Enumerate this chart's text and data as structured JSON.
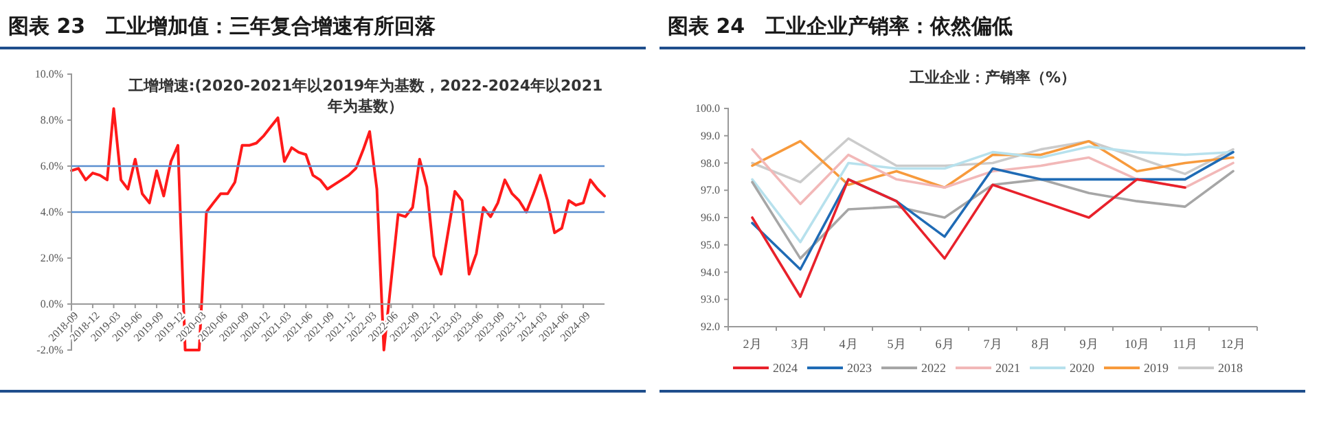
{
  "chart_data": [
    {
      "type": "line",
      "title": "图表 23　工业增加值：三年复合增速有所回落",
      "subtitle": "工增增速:(2020-2021年以2019年为基数，2022-2024年以2021年为基数）",
      "x": [
        "2018-09",
        "2018-10",
        "2018-11",
        "2018-12",
        "2019-01",
        "2019-02",
        "2019-03",
        "2019-04",
        "2019-05",
        "2019-06",
        "2019-07",
        "2019-08",
        "2019-09",
        "2019-10",
        "2019-11",
        "2019-12",
        "2020-01",
        "2020-03",
        "2020-04",
        "2020-05",
        "2020-06",
        "2020-07",
        "2020-08",
        "2020-09",
        "2020-10",
        "2020-11",
        "2020-12",
        "2021-01",
        "2021-02",
        "2021-03",
        "2021-04",
        "2021-05",
        "2021-06",
        "2021-07",
        "2021-08",
        "2021-09",
        "2021-10",
        "2021-11",
        "2021-12",
        "2022-01",
        "2022-02",
        "2022-03",
        "2022-04",
        "2022-05",
        "2022-07",
        "2022-08",
        "2022-09",
        "2022-10",
        "2022-11",
        "2022-12",
        "2023-01",
        "2023-03",
        "2023-04",
        "2023-05",
        "2023-06",
        "2023-07",
        "2023-08",
        "2023-09",
        "2023-10",
        "2023-11",
        "2023-12",
        "2024-01",
        "2024-02",
        "2024-03",
        "2024-04",
        "2024-05",
        "2024-06",
        "2024-07",
        "2024-08",
        "2024-09",
        "2024-10",
        "2024-11",
        "2024-12"
      ],
      "series": [
        {
          "color": "#ff1a1a",
          "values": [
            5.8,
            5.9,
            5.4,
            5.7,
            5.6,
            5.4,
            8.5,
            5.4,
            5.0,
            6.3,
            4.8,
            4.4,
            5.8,
            4.7,
            6.2,
            6.9,
            -2.0,
            -2.0,
            4.0,
            4.4,
            4.8,
            4.8,
            5.3,
            6.9,
            6.9,
            7.0,
            7.3,
            7.7,
            8.1,
            6.2,
            6.8,
            6.6,
            6.5,
            5.6,
            5.4,
            5.0,
            5.2,
            5.4,
            5.6,
            5.9,
            6.7,
            7.5,
            5.0,
            -2.0,
            3.9,
            3.8,
            4.2,
            6.3,
            5.1,
            2.1,
            1.3,
            4.9,
            4.5,
            1.3,
            2.2,
            4.2,
            3.8,
            4.4,
            5.4,
            4.8,
            4.5,
            4.0,
            4.8,
            5.6,
            4.5,
            3.1,
            3.3,
            4.5,
            4.3,
            4.4,
            5.4,
            5.0,
            4.7
          ]
        }
      ],
      "xlim": [
        "2018-09",
        "2024-12"
      ],
      "xticks": [
        "2018-09",
        "2018-12",
        "2019-03",
        "2019-06",
        "2019-09",
        "2019-12",
        "2020-03",
        "2020-06",
        "2020-09",
        "2020-12",
        "2021-03",
        "2021-06",
        "2021-09",
        "2021-12",
        "2022-03",
        "2022-06",
        "2022-09",
        "2022-12",
        "2023-03",
        "2023-06",
        "2023-09",
        "2023-12",
        "2024-03",
        "2024-06",
        "2024-09"
      ],
      "ylim": [
        -2,
        10
      ],
      "yticks": [
        {
          "value": -2,
          "label": "-2.0%"
        },
        {
          "value": 0,
          "label": "0.0%"
        },
        {
          "value": 2,
          "label": "2.0%"
        },
        {
          "value": 4,
          "label": "4.0%"
        },
        {
          "value": 6,
          "label": "6.0%"
        },
        {
          "value": 8,
          "label": "8.0%"
        },
        {
          "value": 10,
          "label": "10.0%"
        }
      ],
      "ref_lines": [
        {
          "axis": "y",
          "value": 6,
          "color": "#5b8fd0"
        },
        {
          "axis": "y",
          "value": 4,
          "color": "#5b8fd0"
        }
      ],
      "grid": false,
      "legend": false
    },
    {
      "type": "line",
      "title": "图表 24　工业企业产销率：依然偏低",
      "subtitle": "工业企业：产销率（%）",
      "categories": [
        "2月",
        "3月",
        "4月",
        "5月",
        "6月",
        "7月",
        "8月",
        "9月",
        "10月",
        "11月",
        "12月"
      ],
      "series": [
        {
          "name": "2024",
          "color": "#e8212b",
          "values": [
            96.0,
            93.1,
            97.4,
            96.6,
            94.5,
            97.2,
            96.6,
            96.0,
            97.4,
            97.1,
            null
          ]
        },
        {
          "name": "2023",
          "color": "#1f6bb5",
          "values": [
            95.8,
            94.1,
            97.4,
            96.6,
            95.3,
            97.8,
            97.4,
            97.4,
            97.4,
            97.4,
            98.4
          ]
        },
        {
          "name": "2022",
          "color": "#a6a6a6",
          "values": [
            97.3,
            94.5,
            96.3,
            96.4,
            96.0,
            97.2,
            97.4,
            96.9,
            96.6,
            96.4,
            97.7
          ]
        },
        {
          "name": "2021",
          "color": "#f2b8b8",
          "values": [
            98.5,
            96.5,
            98.3,
            97.4,
            97.1,
            97.7,
            97.9,
            98.2,
            97.4,
            97.1,
            98.0
          ]
        },
        {
          "name": "2020",
          "color": "#b7e1ed",
          "values": [
            97.4,
            95.1,
            98.0,
            97.8,
            97.8,
            98.4,
            98.2,
            98.6,
            98.4,
            98.3,
            98.4
          ]
        },
        {
          "name": "2019",
          "color": "#f79a3c",
          "values": [
            97.9,
            98.8,
            97.2,
            97.7,
            97.1,
            98.3,
            98.3,
            98.8,
            97.7,
            98.0,
            98.2
          ]
        },
        {
          "name": "2018",
          "color": "#cbcbcb",
          "values": [
            98.0,
            97.3,
            98.9,
            97.9,
            97.9,
            98.0,
            98.5,
            98.8,
            98.2,
            97.6,
            98.5
          ]
        }
      ],
      "ylim": [
        92,
        100
      ],
      "yticks": [
        {
          "value": 92,
          "label": "92.0"
        },
        {
          "value": 93,
          "label": "93.0"
        },
        {
          "value": 94,
          "label": "94.0"
        },
        {
          "value": 95,
          "label": "95.0"
        },
        {
          "value": 96,
          "label": "96.0"
        },
        {
          "value": 97,
          "label": "97.0"
        },
        {
          "value": 98,
          "label": "98.0"
        },
        {
          "value": 99,
          "label": "99.0"
        },
        {
          "value": 100,
          "label": "100.0"
        }
      ],
      "grid": false,
      "legend": "bottom"
    }
  ]
}
